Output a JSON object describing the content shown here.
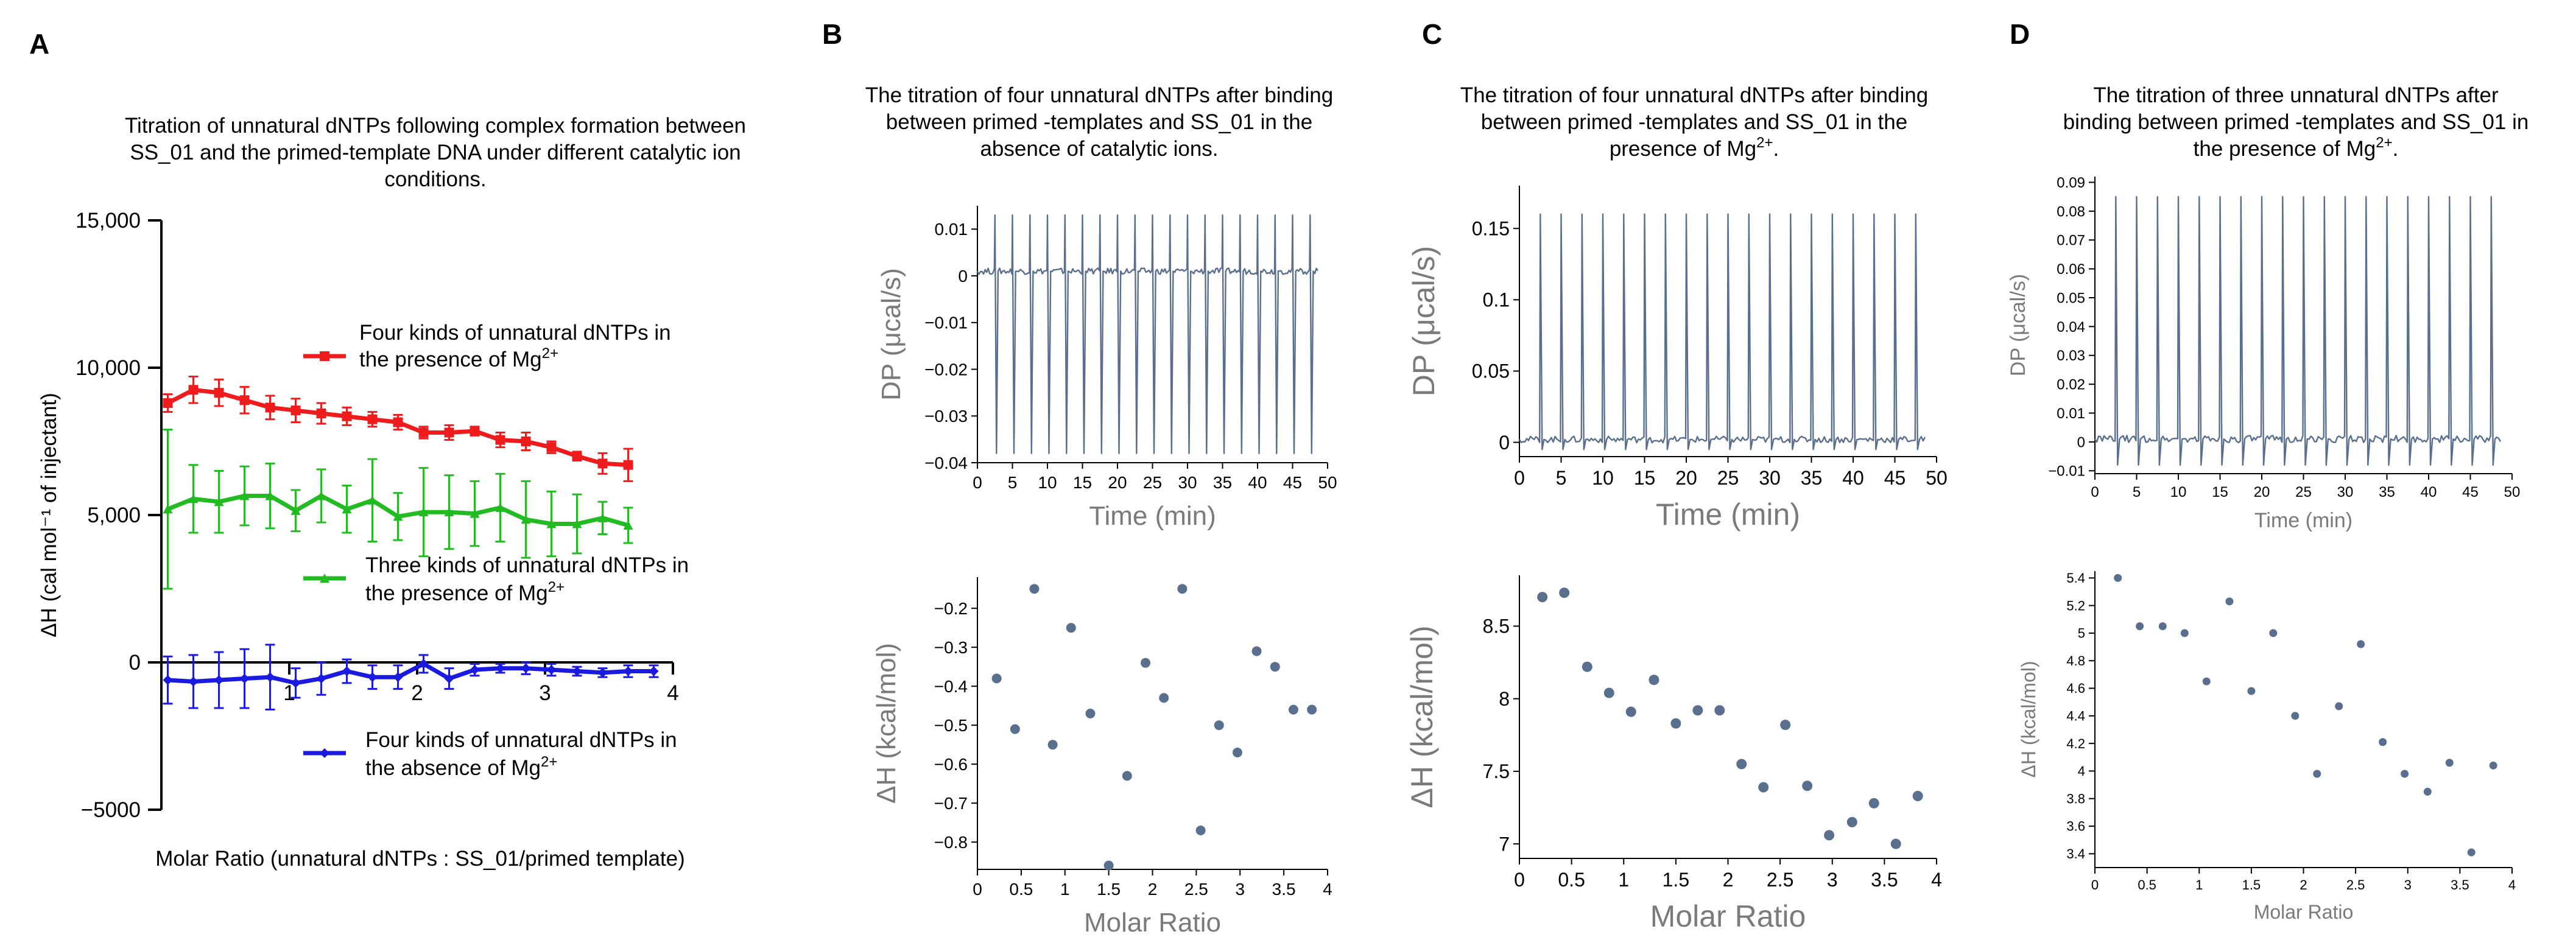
{
  "panel_labels": {
    "a": "A",
    "b": "B",
    "c": "C",
    "d": "D"
  },
  "panel_titles": {
    "a": [
      "Titration of unnatural dNTPs following complex formation between",
      "SS_01 and the primed-template DNA under different catalytic ion",
      "conditions."
    ],
    "b": [
      "The titration of four unnatural dNTPs after binding",
      "between primed -templates and SS_01 in the",
      "absence of catalytic ions."
    ],
    "c": [
      "The titration of four unnatural dNTPs after binding",
      "between primed -templates and SS_01 in the",
      "presence of Mg",
      "2+",
      "."
    ],
    "d": [
      "The titration of three unnatural dNTPs after",
      "binding between primed -templates and SS_01 in",
      "the presence of Mg",
      "2+",
      "."
    ]
  },
  "colors": {
    "red": "#ee1c1c",
    "green": "#22bb22",
    "blue": "#1a1ae0",
    "trace": "#5a6f8e",
    "dot": "#5a6f8e"
  },
  "chart_data": [
    {
      "id": "A",
      "type": "line",
      "xlabel": "Molar Ratio (unnatural dNTPs : SS_01/primed template)",
      "ylabel": "ΔH (cal mol⁻¹ of injectant)",
      "xlim": [
        0,
        4
      ],
      "ylim": [
        -5000,
        15000
      ],
      "xticks": [
        1,
        2,
        3,
        4
      ],
      "xtick_labels": [
        "1",
        "2",
        "3",
        "4"
      ],
      "yticks": [
        15000,
        10000,
        5000,
        0,
        -5000
      ],
      "ytick_labels": [
        "15,000",
        "10,000",
        "5,000",
        "0",
        "−5000"
      ],
      "x": [
        0.05,
        0.25,
        0.45,
        0.65,
        0.85,
        1.05,
        1.25,
        1.45,
        1.65,
        1.85,
        2.05,
        2.25,
        2.45,
        2.65,
        2.85,
        3.05,
        3.25,
        3.45,
        3.65,
        3.85
      ],
      "series": [
        {
          "name": "Four kinds of unnatural dNTPs in the presence of Mg2+",
          "legend": [
            "Four kinds of unnatural dNTPs in",
            "the presence of Mg",
            "2+"
          ],
          "color": "red",
          "marker": "square",
          "values": [
            8800,
            9250,
            9150,
            8900,
            8650,
            8550,
            8450,
            8350,
            8250,
            8150,
            7800,
            7800,
            7850,
            7550,
            7500,
            7300,
            7000,
            6750,
            6700,
            null
          ],
          "err": [
            300,
            450,
            450,
            450,
            400,
            400,
            350,
            300,
            250,
            250,
            200,
            250,
            150,
            250,
            300,
            200,
            150,
            350,
            550,
            null
          ]
        },
        {
          "name": "Three kinds of unnatural dNTPs in the presence of Mg2+",
          "legend": [
            "Three kinds of unnatural dNTPs in",
            "the presence of Mg",
            "2+"
          ],
          "color": "green",
          "marker": "triangle",
          "values": [
            5200,
            5550,
            5450,
            5650,
            5650,
            5150,
            5650,
            5200,
            5500,
            4950,
            5100,
            5100,
            5050,
            5250,
            4850,
            4700,
            4700,
            4900,
            4650,
            null
          ],
          "err": [
            2700,
            1150,
            1050,
            1000,
            1100,
            700,
            900,
            800,
            1400,
            800,
            1500,
            1250,
            1100,
            1150,
            1300,
            1100,
            1000,
            550,
            600,
            null
          ]
        },
        {
          "name": "Four kinds of unnatural dNTPs in the absence of Mg2+",
          "legend": [
            "Four kinds of unnatural dNTPs in",
            "the absence of Mg",
            "2+"
          ],
          "color": "blue",
          "marker": "diamond",
          "values": [
            -600,
            -650,
            -600,
            -550,
            -500,
            -700,
            -550,
            -300,
            -500,
            -500,
            -50,
            -550,
            -250,
            -200,
            -200,
            -250,
            -300,
            -350,
            -300,
            -300
          ],
          "err": [
            800,
            900,
            950,
            1000,
            1100,
            500,
            550,
            400,
            400,
            400,
            300,
            350,
            200,
            150,
            200,
            200,
            150,
            150,
            200,
            200
          ]
        }
      ]
    },
    {
      "id": "B-top",
      "type": "line",
      "xlabel": "Time (min)",
      "ylabel": "DP (μcal/s)",
      "xlim": [
        0,
        50
      ],
      "ylim": [
        -0.04,
        0.015
      ],
      "xticks": [
        0,
        5,
        10,
        15,
        20,
        25,
        30,
        35,
        40,
        45,
        50
      ],
      "yticks": [
        0.01,
        0,
        -0.01,
        -0.02,
        -0.03,
        -0.04
      ],
      "ytick_labels": [
        "0.01",
        "0",
        "−0.01",
        "−0.02",
        "−0.03",
        "−0.04"
      ],
      "injections": [
        2.5,
        5,
        7.5,
        10,
        12.5,
        15,
        17.5,
        20,
        22.5,
        25,
        27.5,
        30,
        32.5,
        35,
        37.5,
        40,
        42.5,
        45,
        47.5
      ],
      "spike_up": 0.013,
      "spike_down": -0.038,
      "baseline": 0.001
    },
    {
      "id": "B-bottom",
      "type": "scatter",
      "xlabel": "Molar Ratio",
      "ylabel": "ΔH (kcal/mol)",
      "xlim": [
        0,
        4
      ],
      "ylim": [
        -0.87,
        -0.12
      ],
      "xticks": [
        0,
        0.5,
        1,
        1.5,
        2,
        2.5,
        3,
        3.5,
        4
      ],
      "yticks": [
        -0.2,
        -0.3,
        -0.4,
        -0.5,
        -0.6,
        -0.7,
        -0.8
      ],
      "ytick_labels": [
        "−0.2",
        "−0.3",
        "−0.4",
        "−0.5",
        "−0.6",
        "−0.7",
        "−0.8"
      ],
      "x": [
        0.22,
        0.43,
        0.65,
        0.86,
        1.07,
        1.29,
        1.5,
        1.71,
        1.92,
        2.13,
        2.34,
        2.55,
        2.76,
        2.97,
        3.19,
        3.4,
        3.61,
        3.82
      ],
      "y": [
        -0.38,
        -0.51,
        -0.15,
        -0.55,
        -0.25,
        -0.47,
        -0.86,
        -0.63,
        -0.34,
        -0.43,
        -0.15,
        -0.77,
        -0.5,
        -0.57,
        -0.31,
        -0.35,
        -0.46,
        -0.46
      ]
    },
    {
      "id": "C-top",
      "type": "line",
      "xlabel": "Time (min)",
      "ylabel": "DP (μcal/s)",
      "xlim": [
        0,
        50
      ],
      "ylim": [
        -0.01,
        0.18
      ],
      "xticks": [
        0,
        5,
        10,
        15,
        20,
        25,
        30,
        35,
        40,
        45,
        50
      ],
      "yticks": [
        0.15,
        0.1,
        0.05,
        0
      ],
      "ytick_labels": [
        "0.15",
        "0.1",
        "0.05",
        "0"
      ],
      "injections": [
        2.5,
        5,
        7.5,
        10,
        12.5,
        15,
        17.5,
        20,
        22.5,
        25,
        27.5,
        30,
        32.5,
        35,
        37.5,
        40,
        42.5,
        45,
        47.5
      ],
      "spike_up": 0.16,
      "spike_down": -0.005,
      "baseline": 0.002
    },
    {
      "id": "C-bottom",
      "type": "scatter",
      "xlabel": "Molar Ratio",
      "ylabel": "ΔH (kcal/mol)",
      "xlim": [
        0,
        4
      ],
      "ylim": [
        6.9,
        8.85
      ],
      "xticks": [
        0,
        0.5,
        1,
        1.5,
        2,
        2.5,
        3,
        3.5,
        4
      ],
      "yticks": [
        8.5,
        8,
        7.5,
        7
      ],
      "ytick_labels": [
        "8.5",
        "8",
        "7.5",
        "7"
      ],
      "x": [
        0.22,
        0.43,
        0.65,
        0.86,
        1.07,
        1.29,
        1.5,
        1.71,
        1.92,
        2.13,
        2.34,
        2.55,
        2.76,
        2.97,
        3.19,
        3.4,
        3.61,
        3.82
      ],
      "y": [
        8.7,
        8.73,
        8.22,
        8.04,
        7.91,
        8.13,
        7.83,
        7.92,
        7.92,
        7.55,
        7.39,
        7.82,
        7.4,
        7.06,
        7.15,
        7.28,
        7.0,
        7.33
      ]
    },
    {
      "id": "D-top",
      "type": "line",
      "xlabel": "Time (min)",
      "ylabel": "DP (μcal/s)",
      "xlim": [
        0,
        50
      ],
      "ylim": [
        -0.011,
        0.092
      ],
      "xticks": [
        0,
        5,
        10,
        15,
        20,
        25,
        30,
        35,
        40,
        45,
        50
      ],
      "yticks": [
        0.09,
        0.08,
        0.07,
        0.06,
        0.05,
        0.04,
        0.03,
        0.02,
        0.01,
        0,
        -0.01
      ],
      "ytick_labels": [
        "0.09",
        "0.08",
        "0.07",
        "0.06",
        "0.05",
        "0.04",
        "0.03",
        "0.02",
        "0.01",
        "0",
        "−0.01"
      ],
      "injections": [
        2.5,
        5,
        7.5,
        10,
        12.5,
        15,
        17.5,
        20,
        22.5,
        25,
        27.5,
        30,
        32.5,
        35,
        37.5,
        40,
        42.5,
        45,
        47.5
      ],
      "spike_up": 0.085,
      "spike_down": -0.008,
      "baseline": 0.001
    },
    {
      "id": "D-bottom",
      "type": "scatter",
      "xlabel": "Molar Ratio",
      "ylabel": "ΔH (kcal/mol)",
      "xlim": [
        0,
        4
      ],
      "ylim": [
        3.3,
        5.45
      ],
      "xticks": [
        0,
        0.5,
        1,
        1.5,
        2,
        2.5,
        3,
        3.5,
        4
      ],
      "yticks": [
        5.4,
        5.2,
        5,
        4.8,
        4.6,
        4.4,
        4.2,
        4,
        3.8,
        3.6,
        3.4
      ],
      "ytick_labels": [
        "5.4",
        "5.2",
        "5",
        "4.8",
        "4.6",
        "4.4",
        "4.2",
        "4",
        "3.8",
        "3.6",
        "3.4"
      ],
      "x": [
        0.22,
        0.43,
        0.65,
        0.86,
        1.07,
        1.29,
        1.5,
        1.71,
        1.92,
        2.13,
        2.34,
        2.55,
        2.76,
        2.97,
        3.19,
        3.4,
        3.61,
        3.82
      ],
      "y": [
        5.4,
        5.05,
        5.05,
        5.0,
        4.65,
        5.23,
        4.58,
        5.0,
        4.4,
        3.98,
        4.47,
        4.92,
        4.21,
        3.98,
        3.85,
        4.06,
        3.41,
        4.04
      ]
    }
  ]
}
